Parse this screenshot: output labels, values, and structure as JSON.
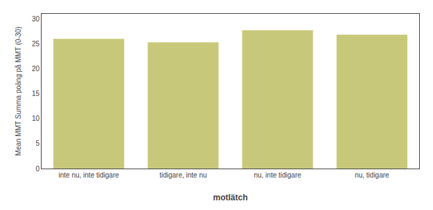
{
  "chart_data": {
    "type": "bar",
    "categories": [
      "inte nu, inte tidigare",
      "tidigare, inte nu",
      "nu, inte tidigare",
      "nu, tidigare"
    ],
    "values": [
      26.0,
      25.3,
      27.7,
      26.8
    ],
    "color": "#c8c87a",
    "xlabel": "motlätch",
    "ylabel": "Mean MMT Summa poäng på MMT (0-30)",
    "ylim": [
      0,
      31
    ],
    "yticks": [
      0,
      5,
      10,
      15,
      20,
      25,
      30
    ],
    "grid": false
  }
}
